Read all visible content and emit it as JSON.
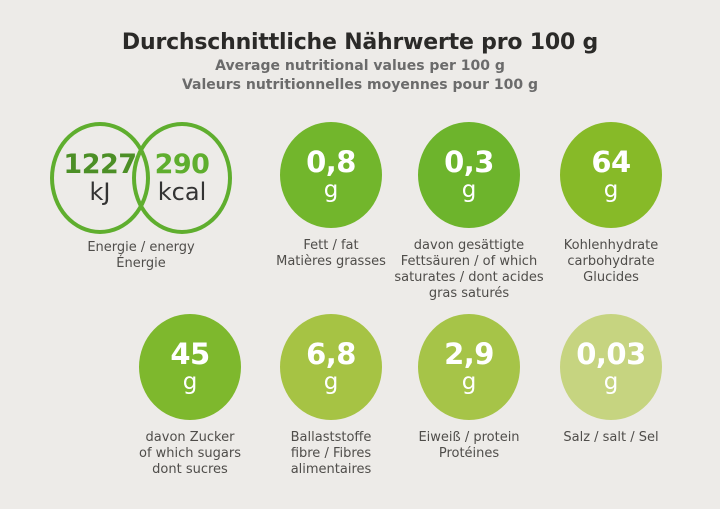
{
  "header": {
    "title": "Durchschnittliche Nährwerte pro 100 g",
    "subtitle_en": "Average nutritional values per 100 g",
    "subtitle_fr": "Valeurs nutritionnelles moyennes pour 100 g"
  },
  "energy": {
    "kj_value": "1227",
    "kj_unit": "kJ",
    "kcal_value": "290",
    "kcal_unit": "kcal",
    "label_lines": [
      "Energie / energy",
      "Énergie"
    ]
  },
  "nutrients": [
    {
      "id": "fat",
      "value": "0,8",
      "unit": "g",
      "color": "#72b62c",
      "label_lines": [
        "Fett / fat",
        "Matières grasses"
      ]
    },
    {
      "id": "saturates",
      "value": "0,3",
      "unit": "g",
      "color": "#6db42c",
      "label_lines": [
        "davon gesättigte",
        "Fettsäuren / of which",
        "saturates / dont acides",
        "gras saturés"
      ]
    },
    {
      "id": "carbs",
      "value": "64",
      "unit": "g",
      "color": "#87ba28",
      "label_lines": [
        "Kohlenhydrate",
        "carbohydrate",
        "Glucides"
      ]
    },
    {
      "id": "sugars",
      "value": "45",
      "unit": "g",
      "color": "#7eb82d",
      "label_lines": [
        "davon Zucker",
        "of which sugars",
        "dont sucres"
      ]
    },
    {
      "id": "fibre",
      "value": "6,8",
      "unit": "g",
      "color": "#a6c344",
      "label_lines": [
        "Ballaststoffe",
        "fibre / Fibres",
        "alimentaires"
      ]
    },
    {
      "id": "protein",
      "value": "2,9",
      "unit": "g",
      "color": "#a6c448",
      "label_lines": [
        "Eiweiß / protein",
        "Protéines"
      ]
    },
    {
      "id": "salt",
      "value": "0,03",
      "unit": "g",
      "color": "#c6d480",
      "label_lines": [
        "Salz / salt / Sel"
      ]
    }
  ],
  "colors": {
    "background": "#edebe8",
    "title_text": "#2b2a28",
    "subtitle_text": "#6b6b6b",
    "label_text": "#4f4d4a",
    "ring_stroke": "#5fae2e",
    "kj_number": "#4c8f26",
    "kcal_number": "#5fae2e",
    "unit_text_dark": "#333333",
    "circle_text": "#ffffff"
  }
}
